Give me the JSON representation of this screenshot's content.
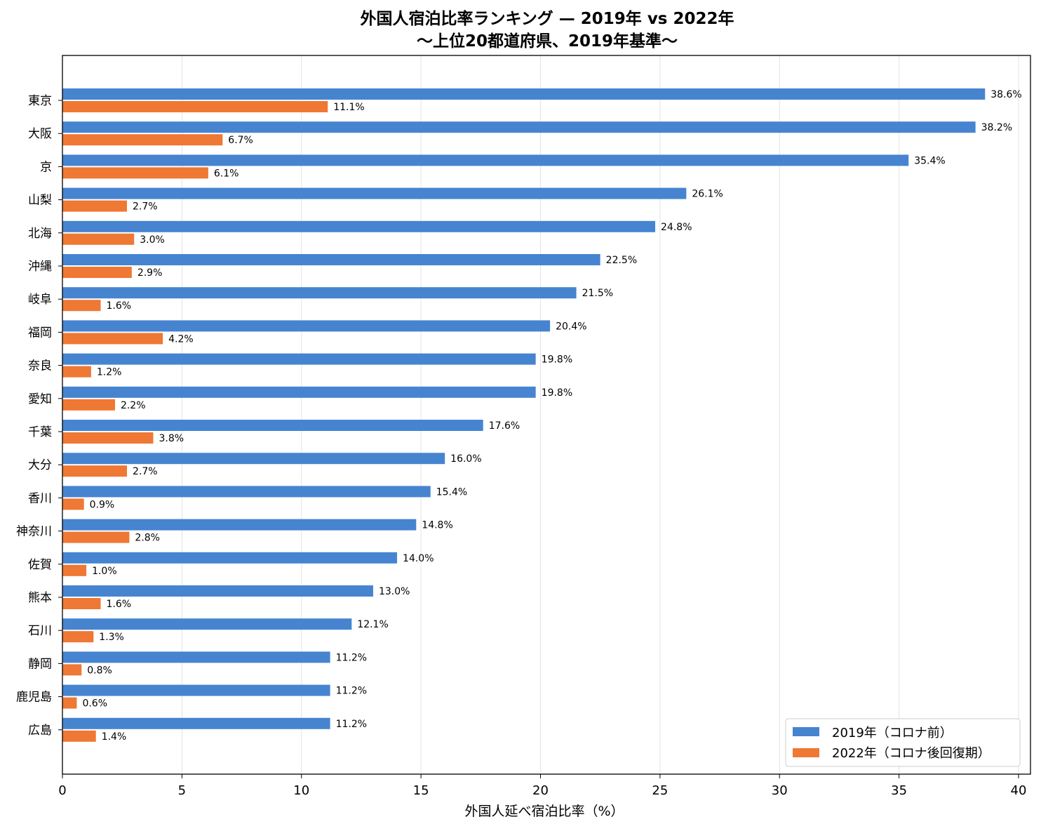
{
  "chart_data": {
    "type": "bar",
    "orientation": "horizontal",
    "title": "外国人宿泊比率ランキング — 2019年 vs 2022年",
    "subtitle": "〜上位20都道府県、2019年基準〜",
    "xlabel": "外国人延べ宿泊比率（%）",
    "ylabel": "",
    "xlim": [
      0,
      40.5
    ],
    "xticks": [
      0,
      5,
      10,
      15,
      20,
      25,
      30,
      35,
      40
    ],
    "grid": "x",
    "legend_position": "bottom-right",
    "value_suffix": "%",
    "categories": [
      "東京",
      "大阪",
      "京",
      "山梨",
      "北海",
      "沖縄",
      "岐阜",
      "福岡",
      "奈良",
      "愛知",
      "千葉",
      "大分",
      "香川",
      "神奈川",
      "佐賀",
      "熊本",
      "石川",
      "静岡",
      "鹿児島",
      "広島"
    ],
    "series": [
      {
        "name": "2019年（コロナ前）",
        "color": "#4684d0",
        "values": [
          38.6,
          38.2,
          35.4,
          26.1,
          24.8,
          22.5,
          21.5,
          20.4,
          19.8,
          19.8,
          17.6,
          16.0,
          15.4,
          14.8,
          14.0,
          13.0,
          12.1,
          11.2,
          11.2,
          11.2
        ]
      },
      {
        "name": "2022年（コロナ後回復期）",
        "color": "#ee7834",
        "values": [
          11.1,
          6.7,
          6.1,
          2.7,
          3.0,
          2.9,
          1.6,
          4.2,
          1.2,
          2.2,
          3.8,
          2.7,
          0.9,
          2.8,
          1.0,
          1.6,
          1.3,
          0.8,
          0.6,
          1.4
        ]
      }
    ]
  }
}
